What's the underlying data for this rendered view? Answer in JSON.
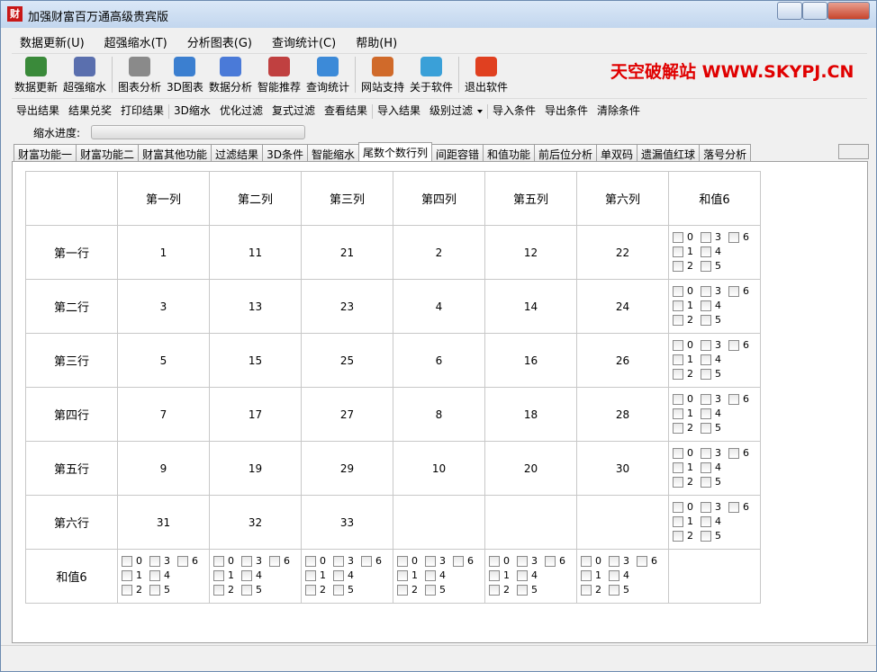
{
  "window": {
    "title": "加强财富百万通高级贵宾版"
  },
  "menu": [
    "数据更新(U)",
    "超强缩水(T)",
    "分析图表(G)",
    "查询统计(C)",
    "帮助(H)"
  ],
  "toolbar": [
    "数据更新",
    "超强缩水",
    "图表分析",
    "3D图表",
    "数据分析",
    "智能推荐",
    "查询统计",
    "网站支持",
    "关于软件",
    "退出软件"
  ],
  "watermark": "天空破解站 WWW.SKYPJ.CN",
  "toolbar2": [
    "导出结果",
    "结果兑奖",
    "打印结果",
    "3D缩水",
    "优化过滤",
    "复式过滤",
    "查看结果",
    "导入结果",
    "级别过滤",
    "导入条件",
    "导出条件",
    "清除条件"
  ],
  "progress_label": "缩水进度:",
  "tabs": [
    "财富功能一",
    "财富功能二",
    "财富其他功能",
    "过滤结果",
    "3D条件",
    "智能缩水",
    "尾数个数行列",
    "间距容错",
    "和值功能",
    "前后位分析",
    "单双码",
    "遗漏值红球",
    "落号分析"
  ],
  "table": {
    "columns": [
      "第一列",
      "第二列",
      "第三列",
      "第四列",
      "第五列",
      "第六列"
    ],
    "sum_header": "和值6",
    "rows": [
      {
        "label": "第一行",
        "cells": [
          1,
          11,
          21,
          2,
          12,
          22
        ]
      },
      {
        "label": "第二行",
        "cells": [
          3,
          13,
          23,
          4,
          14,
          24
        ]
      },
      {
        "label": "第三行",
        "cells": [
          5,
          15,
          25,
          6,
          16,
          26
        ]
      },
      {
        "label": "第四行",
        "cells": [
          7,
          17,
          27,
          8,
          18,
          28
        ]
      },
      {
        "label": "第五行",
        "cells": [
          9,
          19,
          29,
          10,
          20,
          30
        ]
      },
      {
        "label": "第六行",
        "cells": [
          31,
          32,
          33,
          null,
          null,
          null
        ]
      }
    ],
    "sum_row_label": "和值6",
    "checkbox_options": [
      0,
      1,
      2,
      3,
      4,
      5,
      6
    ]
  }
}
